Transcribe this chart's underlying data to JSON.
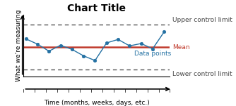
{
  "title": "Chart Title",
  "xlabel": "Time (months, weeks, days, etc.)",
  "ylabel": "What we’re measuring",
  "mean": 0.5,
  "ucl": 0.88,
  "lcl": 0.12,
  "data_x": [
    0,
    1,
    2,
    3,
    4,
    5,
    6,
    7,
    8,
    9,
    10,
    11,
    12
  ],
  "data_y": [
    0.64,
    0.55,
    0.43,
    0.53,
    0.46,
    0.35,
    0.27,
    0.57,
    0.63,
    0.52,
    0.56,
    0.47,
    0.76
  ],
  "xlim": [
    -0.2,
    12.5
  ],
  "ylim": [
    0.0,
    1.05
  ],
  "mean_color": "#c0392b",
  "data_color": "#2471a3",
  "ucl_color": "#555555",
  "lcl_color": "#555555",
  "label_mean": "Mean",
  "label_ucl": "Upper control limit",
  "label_lcl": "Lower control limit",
  "label_data": "Data points",
  "bg_color": "#ffffff",
  "title_fontsize": 10,
  "axis_label_fontsize": 6.5,
  "annotation_fontsize": 6.5
}
